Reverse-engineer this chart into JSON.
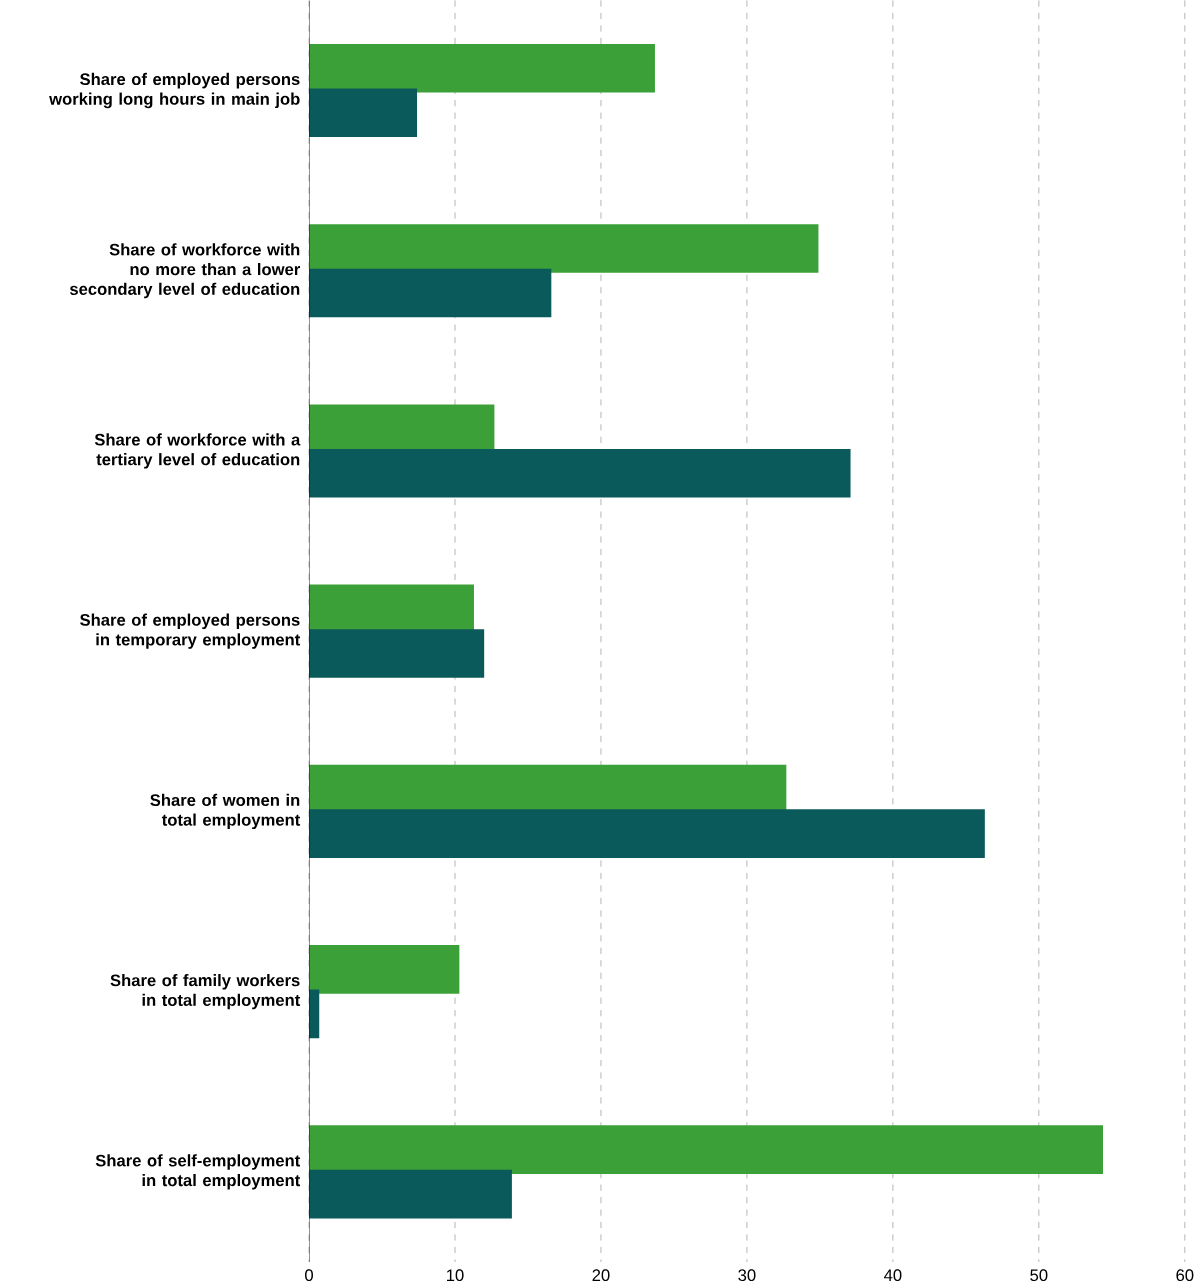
{
  "chart_data": {
    "type": "bar",
    "orientation": "horizontal",
    "categories": [
      "Share of employed persons working long hours in main job",
      "Share of workforce with no more than a lower secondary level of education",
      "Share of workforce with a tertiary level of education",
      "Share of employed persons in temporary employment",
      "Share of women in total employment",
      "Share of family workers in total employment",
      "Share of self-employment in total employment"
    ],
    "series": [
      {
        "color": "#3aa037",
        "values": [
          23.7,
          34.9,
          12.7,
          11.3,
          32.7,
          10.3,
          54.4
        ]
      },
      {
        "color": "#0b5a5b",
        "values": [
          7.4,
          16.6,
          37.1,
          12.0,
          46.3,
          0.7,
          13.9
        ]
      }
    ],
    "xlim": [
      0,
      60
    ],
    "xticks": [
      0,
      10,
      20,
      30,
      40,
      50,
      60
    ],
    "grid": "x"
  }
}
